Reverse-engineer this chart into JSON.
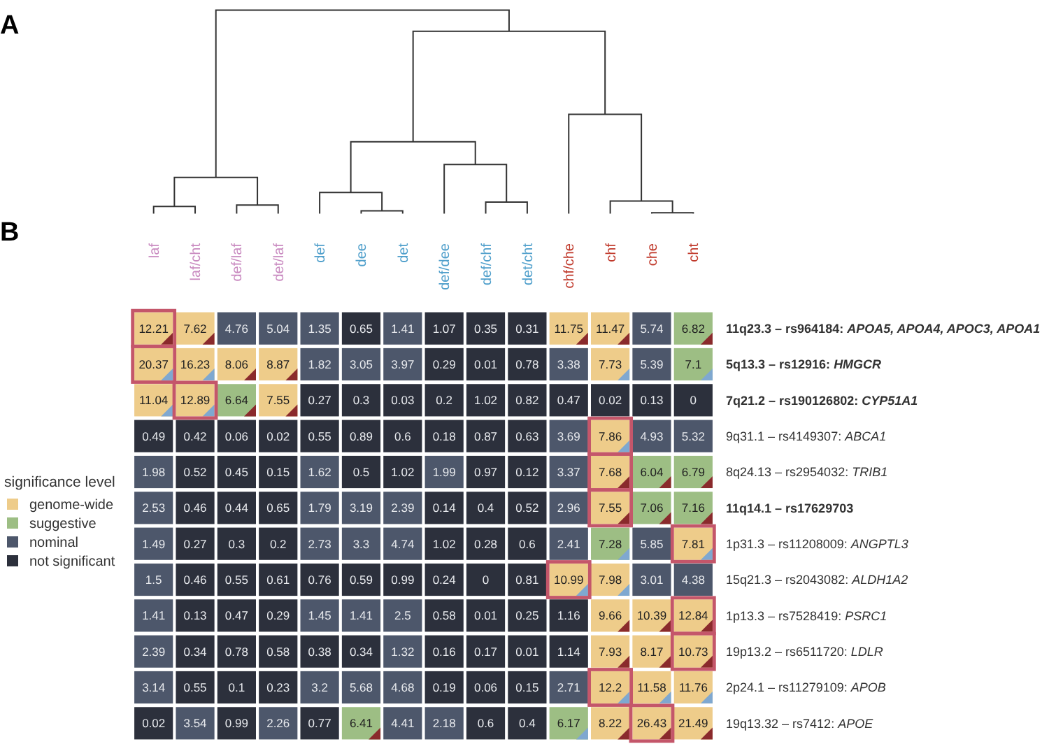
{
  "chart_data": {
    "type": "heatmap",
    "categories": [
      "laf",
      "laf/cht",
      "def/laf",
      "det/laf",
      "def",
      "dee",
      "det",
      "def/dee",
      "def/chf",
      "det/cht",
      "chf/che",
      "chf",
      "che",
      "cht"
    ],
    "y_categories": [
      "11q23.3 – rs964184: APOA5, APOA4, APOC3, APOA1",
      "5q13.3 – rs12916: HMGCR",
      "7q21.2 – rs190126802: CYP51A1",
      "9q31.1 – rs4149307: ABCA1",
      "8q24.13 – rs2954032: TRIB1",
      "11q14.1 – rs17629703",
      "1p31.3 – rs11208009: ANGPTL3",
      "15q21.3 – rs2043082: ALDH1A2",
      "1p13.3 – rs7528419: PSRC1",
      "19p13.2 – rs6511720: LDLR",
      "2p24.1 – rs11279109: APOB",
      "19q13.32 – rs7412: APOE"
    ],
    "cells": [
      [
        12.21,
        7.62,
        4.76,
        5.04,
        1.35,
        0.65,
        1.41,
        1.07,
        0.35,
        0.31,
        11.75,
        11.47,
        5.74,
        6.82
      ],
      [
        20.37,
        16.23,
        8.06,
        8.87,
        1.82,
        3.05,
        3.97,
        0.29,
        0.01,
        0.78,
        3.38,
        7.73,
        5.39,
        7.1
      ],
      [
        11.04,
        12.89,
        6.64,
        7.55,
        0.27,
        0.3,
        0.03,
        0.2,
        1.02,
        0.82,
        0.47,
        0.02,
        0.13,
        0
      ],
      [
        0.49,
        0.42,
        0.06,
        0.02,
        0.55,
        0.89,
        0.6,
        0.18,
        0.87,
        0.63,
        3.69,
        7.86,
        4.93,
        5.32
      ],
      [
        1.98,
        0.52,
        0.45,
        0.15,
        1.62,
        0.5,
        1.02,
        1.99,
        0.97,
        0.12,
        3.37,
        7.68,
        6.04,
        6.79
      ],
      [
        2.53,
        0.46,
        0.44,
        0.65,
        1.79,
        3.19,
        2.39,
        0.14,
        0.4,
        0.52,
        2.96,
        7.55,
        7.06,
        7.16
      ],
      [
        1.49,
        0.27,
        0.3,
        0.2,
        2.73,
        3.3,
        4.74,
        1.02,
        0.28,
        0.6,
        2.41,
        7.28,
        5.85,
        7.81
      ],
      [
        1.5,
        0.46,
        0.55,
        0.61,
        0.76,
        0.59,
        0.99,
        0.24,
        0,
        0.81,
        10.99,
        7.98,
        3.01,
        4.38
      ],
      [
        1.41,
        0.13,
        0.47,
        0.29,
        1.45,
        1.41,
        2.5,
        0.58,
        0.01,
        0.25,
        1.16,
        9.66,
        10.39,
        12.84
      ],
      [
        2.39,
        0.34,
        0.78,
        0.58,
        0.38,
        0.34,
        1.32,
        0.16,
        0.17,
        0.01,
        1.14,
        7.93,
        8.17,
        10.73
      ],
      [
        3.14,
        0.55,
        0.1,
        0.23,
        3.2,
        5.68,
        4.68,
        0.19,
        0.06,
        0.15,
        2.71,
        12.2,
        11.58,
        11.76
      ],
      [
        0.02,
        3.54,
        0.99,
        2.26,
        0.77,
        6.41,
        4.41,
        2.18,
        0.6,
        0.4,
        6.17,
        8.22,
        26.43,
        21.49
      ]
    ],
    "colors": [
      [
        "#eecc8a",
        "#eecc8a",
        "#4d576b",
        "#4d576b",
        "#4d576b",
        "#2c303c",
        "#4d576b",
        "#2c303c",
        "#2c303c",
        "#2c303c",
        "#eecc8a",
        "#eecc8a",
        "#4d576b",
        "#9dbe84"
      ],
      [
        "#eecc8a",
        "#eecc8a",
        "#eecc8a",
        "#eecc8a",
        "#4d576b",
        "#4d576b",
        "#4d576b",
        "#2c303c",
        "#2c303c",
        "#2c303c",
        "#4d576b",
        "#eecc8a",
        "#4d576b",
        "#9dbe84"
      ],
      [
        "#eecc8a",
        "#eecc8a",
        "#9dbe84",
        "#eecc8a",
        "#2c303c",
        "#2c303c",
        "#2c303c",
        "#2c303c",
        "#2c303c",
        "#2c303c",
        "#2c303c",
        "#2c303c",
        "#2c303c",
        "#2c303c"
      ],
      [
        "#2c303c",
        "#2c303c",
        "#2c303c",
        "#2c303c",
        "#2c303c",
        "#2c303c",
        "#2c303c",
        "#2c303c",
        "#2c303c",
        "#2c303c",
        "#4d576b",
        "#eecc8a",
        "#4d576b",
        "#4d576b"
      ],
      [
        "#4d576b",
        "#2c303c",
        "#2c303c",
        "#2c303c",
        "#4d576b",
        "#2c303c",
        "#2c303c",
        "#4d576b",
        "#2c303c",
        "#2c303c",
        "#4d576b",
        "#eecc8a",
        "#9dbe84",
        "#9dbe84"
      ],
      [
        "#4d576b",
        "#2c303c",
        "#2c303c",
        "#2c303c",
        "#4d576b",
        "#4d576b",
        "#4d576b",
        "#2c303c",
        "#2c303c",
        "#2c303c",
        "#4d576b",
        "#eecc8a",
        "#9dbe84",
        "#9dbe84"
      ],
      [
        "#4d576b",
        "#2c303c",
        "#2c303c",
        "#2c303c",
        "#4d576b",
        "#4d576b",
        "#4d576b",
        "#2c303c",
        "#2c303c",
        "#2c303c",
        "#4d576b",
        "#9dbe84",
        "#4d576b",
        "#eecc8a"
      ],
      [
        "#4d576b",
        "#2c303c",
        "#2c303c",
        "#2c303c",
        "#2c303c",
        "#2c303c",
        "#2c303c",
        "#2c303c",
        "#2c303c",
        "#2c303c",
        "#eecc8a",
        "#eecc8a",
        "#4d576b",
        "#4d576b"
      ],
      [
        "#4d576b",
        "#2c303c",
        "#2c303c",
        "#2c303c",
        "#4d576b",
        "#4d576b",
        "#4d576b",
        "#2c303c",
        "#2c303c",
        "#2c303c",
        "#2c303c",
        "#eecc8a",
        "#eecc8a",
        "#eecc8a"
      ],
      [
        "#4d576b",
        "#2c303c",
        "#2c303c",
        "#2c303c",
        "#2c303c",
        "#2c303c",
        "#4d576b",
        "#2c303c",
        "#2c303c",
        "#2c303c",
        "#2c303c",
        "#eecc8a",
        "#eecc8a",
        "#eecc8a"
      ],
      [
        "#4d576b",
        "#2c303c",
        "#2c303c",
        "#2c303c",
        "#4d576b",
        "#4d576b",
        "#4d576b",
        "#2c303c",
        "#2c303c",
        "#2c303c",
        "#4d576b",
        "#eecc8a",
        "#eecc8a",
        "#eecc8a"
      ],
      [
        "#2c303c",
        "#4d576b",
        "#2c303c",
        "#4d576b",
        "#2c303c",
        "#9dbe84",
        "#4d576b",
        "#4d576b",
        "#2c303c",
        "#2c303c",
        "#9dbe84",
        "#eecc8a",
        "#eecc8a",
        "#eecc8a"
      ]
    ],
    "data_labels": true,
    "legend": "left",
    "legend_title": "significance level",
    "series": [
      {
        "name": "genome-wide",
        "color": "#eecc8a",
        "values": [
          null,
          null,
          null,
          null,
          null,
          null,
          null,
          null,
          null,
          null,
          null,
          null,
          null,
          null
        ]
      },
      {
        "name": "suggestive",
        "color": "#9dbe84",
        "values": [
          null,
          null,
          null,
          null,
          null,
          null,
          null,
          null,
          null,
          null,
          null,
          null,
          null,
          null
        ]
      },
      {
        "name": "nominal",
        "color": "#4d576b",
        "values": [
          null,
          null,
          null,
          null,
          null,
          null,
          null,
          null,
          null,
          null,
          null,
          null,
          null,
          null
        ]
      },
      {
        "name": "not significant",
        "color": "#2c303c",
        "values": [
          null,
          null,
          null,
          null,
          null,
          null,
          null,
          null,
          null,
          null,
          null,
          null,
          null,
          null
        ]
      }
    ],
    "annotations": [
      "A",
      "B"
    ]
  }
}
